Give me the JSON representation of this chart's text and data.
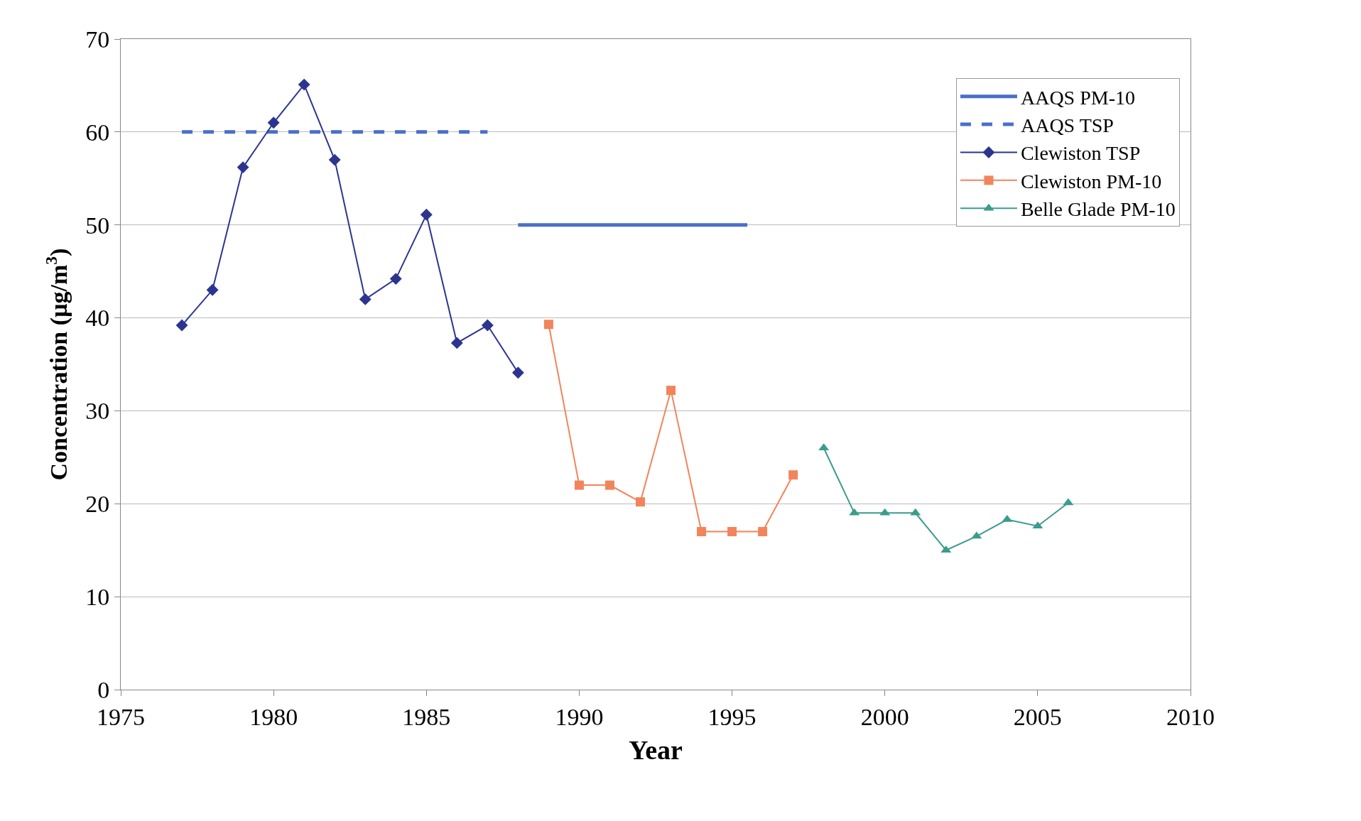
{
  "chart_data": {
    "type": "line",
    "xlabel": "Year",
    "ylabel": "Concentration (µg/m$^{3}$)",
    "xlim": [
      1975,
      2010
    ],
    "xticks": [
      1975,
      1980,
      1985,
      1990,
      1995,
      2000,
      2005,
      2010
    ],
    "ylim": [
      0,
      70
    ],
    "yticks": [
      0,
      10,
      20,
      30,
      40,
      50,
      60,
      70
    ],
    "grid": "y",
    "legend": "top right",
    "series": [
      {
        "name": "AAQS PM-10",
        "color": "#4a6fc9",
        "x": [
          1988,
          1995.5
        ],
        "values": [
          50,
          50
        ],
        "marker": "none",
        "line_style": "solid"
      },
      {
        "name": "AAQS TSP",
        "color": "#4a6fc9",
        "x": [
          1977,
          1987
        ],
        "values": [
          60,
          60
        ],
        "marker": "none",
        "line_style": "dashed"
      },
      {
        "name": "Clewiston TSP",
        "color": "#2b3590",
        "x": [
          1977,
          1978,
          1979,
          1980,
          1981,
          1982,
          1983,
          1984,
          1985,
          1986,
          1987,
          1988
        ],
        "values": [
          39.2,
          43,
          56.2,
          61,
          65.1,
          57,
          42,
          44.2,
          51.1,
          37.3,
          39.2,
          34.1
        ],
        "marker": "diamond",
        "line_style": "solid"
      },
      {
        "name": "Clewiston PM-10",
        "color": "#f2845c",
        "x": [
          1989,
          1990,
          1991,
          1992,
          1993,
          1994,
          1995,
          1996,
          1997
        ],
        "values": [
          39.3,
          22,
          22,
          20.2,
          32.2,
          17,
          17,
          17,
          23.1
        ],
        "marker": "square",
        "line_style": "solid"
      },
      {
        "name": "Belle Glade PM-10",
        "color": "#3a9c8c",
        "x": [
          1998,
          1999,
          2000,
          2001,
          2002,
          2003,
          2004,
          2005,
          2006
        ],
        "values": [
          26,
          19,
          19,
          19,
          15,
          16.5,
          18.3,
          17.6,
          20.1
        ],
        "marker": "triangle",
        "line_style": "solid"
      }
    ]
  }
}
